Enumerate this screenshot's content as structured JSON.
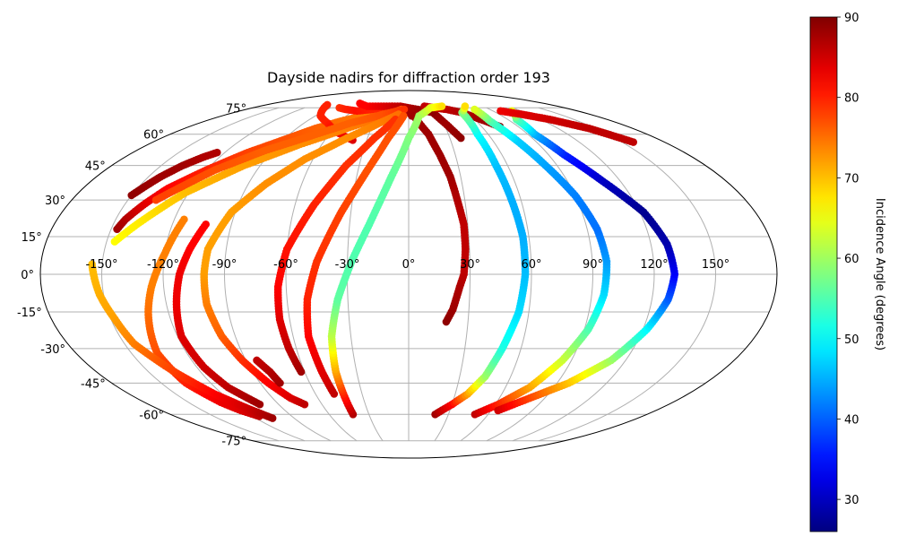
{
  "chart_data": {
    "type": "scatter",
    "title": "Dayside nadirs for diffraction order 193",
    "projection": "mollweide",
    "grid": true,
    "lon_ticks": [
      -150,
      -120,
      -90,
      -60,
      -30,
      0,
      30,
      60,
      90,
      120,
      150
    ],
    "lon_tick_labels": [
      "-150°",
      "-120°",
      "-90°",
      "-60°",
      "-30°",
      "0°",
      "30°",
      "60°",
      "90°",
      "120°",
      "150°"
    ],
    "lat_ticks": [
      75,
      60,
      45,
      30,
      15,
      0,
      -15,
      -30,
      -45,
      -60,
      -75
    ],
    "lat_tick_labels": [
      "75°",
      "60°",
      "45°",
      "30°",
      "15°",
      "0°",
      "-15°",
      "-30°",
      "-45°",
      "-60°",
      "-75°"
    ],
    "colorbar": {
      "label": "Incidence Angle (degrees)",
      "colormap": "jet",
      "vmin": 26,
      "vmax": 90,
      "ticks": [
        30,
        40,
        50,
        60,
        70,
        80,
        90
      ],
      "tick_labels": [
        "30",
        "40",
        "50",
        "60",
        "70",
        "80",
        "90"
      ]
    },
    "series": [
      {
        "points": [
          [
            -150,
            32,
            89
          ],
          [
            -143,
            40,
            88
          ],
          [
            -137,
            45,
            88
          ],
          [
            -130,
            49,
            87
          ],
          [
            -125,
            51,
            87
          ]
        ]
      },
      {
        "points": [
          [
            -147,
            18,
            88
          ],
          [
            -145,
            22,
            87
          ],
          [
            -140,
            28,
            84
          ],
          [
            -133,
            35,
            82
          ],
          [
            -120,
            43,
            80
          ],
          [
            -105,
            51,
            78
          ],
          [
            -90,
            57,
            77
          ],
          [
            -75,
            63,
            76
          ],
          [
            -60,
            67,
            75
          ],
          [
            -40,
            71,
            74
          ],
          [
            -20,
            73,
            75
          ],
          [
            -10,
            73,
            76
          ]
        ]
      },
      {
        "points": [
          [
            -103,
            77,
            80
          ],
          [
            -95,
            74,
            80
          ],
          [
            -85,
            70,
            80
          ],
          [
            -70,
            66,
            80
          ],
          [
            -55,
            61,
            82
          ],
          [
            -40,
            57,
            84
          ]
        ]
      },
      {
        "points": [
          [
            -80,
            75,
            79
          ],
          [
            -70,
            74,
            80
          ],
          [
            -55,
            73,
            81
          ],
          [
            -40,
            74,
            80
          ],
          [
            -20,
            76,
            79
          ],
          [
            -5,
            75,
            82
          ],
          [
            0,
            73,
            86
          ],
          [
            3,
            70,
            88
          ]
        ]
      },
      {
        "points": [
          [
            20,
            75,
            88
          ],
          [
            25,
            72,
            89
          ],
          [
            32,
            65,
            88
          ],
          [
            38,
            58,
            89
          ]
        ]
      },
      {
        "points": [
          [
            -65,
            78,
            82
          ],
          [
            -50,
            76,
            82
          ],
          [
            -30,
            76,
            84
          ],
          [
            -10,
            76,
            86
          ],
          [
            10,
            74,
            88
          ],
          [
            25,
            72,
            89
          ]
        ]
      },
      {
        "points": [
          [
            -7,
            75,
            87
          ],
          [
            5,
            70,
            88
          ],
          [
            15,
            60,
            88
          ],
          [
            20,
            50,
            88
          ],
          [
            24,
            40,
            88
          ],
          [
            26,
            30,
            87
          ],
          [
            28,
            20,
            86
          ],
          [
            28,
            10,
            86
          ],
          [
            27,
            0,
            86
          ],
          [
            25,
            -5,
            87
          ],
          [
            22,
            -14,
            88
          ],
          [
            19,
            -19,
            89
          ]
        ]
      },
      {
        "points": [
          [
            19,
            76,
            86
          ],
          [
            30,
            75,
            85
          ],
          [
            42,
            74,
            86
          ],
          [
            55,
            72,
            87
          ],
          [
            68,
            67,
            88
          ],
          [
            75,
            64,
            89
          ]
        ]
      },
      {
        "points": [
          [
            -115,
            22,
            74
          ],
          [
            -120,
            8,
            74
          ],
          [
            -126,
            -5,
            74
          ],
          [
            -130,
            -15,
            75
          ],
          [
            -136,
            -32,
            77
          ],
          [
            -135,
            -45,
            80
          ],
          [
            -128,
            -54,
            83
          ],
          [
            -122,
            -58,
            84
          ],
          [
            -115,
            -61,
            86
          ]
        ]
      },
      {
        "points": [
          [
            -155,
            4,
            70
          ],
          [
            -152,
            -8,
            71
          ],
          [
            -148,
            -18,
            72
          ],
          [
            -145,
            -28,
            74
          ],
          [
            -135,
            -40,
            78
          ],
          [
            -125,
            -50,
            82
          ],
          [
            -115,
            -57,
            85
          ],
          [
            -107,
            -62,
            88
          ]
        ]
      },
      {
        "points": [
          [
            -146,
            13,
            66
          ],
          [
            -138,
            20,
            67
          ],
          [
            -122,
            33,
            70
          ],
          [
            -100,
            45,
            72
          ],
          [
            -75,
            55,
            73
          ],
          [
            -50,
            63,
            74
          ],
          [
            -25,
            70,
            75
          ],
          [
            -8,
            74,
            76
          ]
        ]
      },
      {
        "points": [
          [
            -103,
            20,
            82
          ],
          [
            -108,
            10,
            82
          ],
          [
            -112,
            0,
            83
          ],
          [
            -115,
            -12,
            83
          ],
          [
            -118,
            -25,
            84
          ],
          [
            -116,
            -38,
            85
          ],
          [
            -112,
            -47,
            86
          ],
          [
            -103,
            -55,
            88
          ]
        ]
      },
      {
        "points": [
          [
            -135,
            30,
            78
          ],
          [
            -115,
            43,
            77
          ],
          [
            -95,
            52,
            76
          ],
          [
            -70,
            60,
            76
          ],
          [
            -50,
            66,
            76
          ],
          [
            -25,
            71,
            77
          ],
          [
            -5,
            74,
            79
          ]
        ]
      },
      {
        "points": [
          [
            -100,
            0,
            72
          ],
          [
            -99,
            10,
            72
          ],
          [
            -92,
            25,
            72
          ],
          [
            -80,
            37,
            73
          ],
          [
            -65,
            48,
            73
          ],
          [
            -45,
            58,
            73
          ],
          [
            -25,
            66,
            74
          ],
          [
            -10,
            71,
            75
          ]
        ]
      },
      {
        "points": [
          [
            -100,
            0,
            72
          ],
          [
            -100,
            -12,
            74
          ],
          [
            -97,
            -25,
            76
          ],
          [
            -92,
            -35,
            79
          ],
          [
            -85,
            -45,
            82
          ],
          [
            -78,
            -52,
            84
          ],
          [
            -72,
            -55,
            86
          ]
        ]
      },
      {
        "points": [
          [
            -78,
            -45,
            88
          ],
          [
            -80,
            -40,
            87
          ],
          [
            -84,
            -35,
            86
          ]
        ]
      },
      {
        "points": [
          [
            -62,
            -40,
            88
          ],
          [
            -64,
            -30,
            86
          ],
          [
            -65,
            -18,
            84
          ],
          [
            -64,
            -5,
            82
          ],
          [
            -60,
            10,
            81
          ],
          [
            -50,
            28,
            80
          ],
          [
            -38,
            45,
            79
          ],
          [
            -25,
            58,
            79
          ],
          [
            -12,
            68,
            79
          ]
        ]
      },
      {
        "points": [
          [
            -48,
            -50,
            86
          ],
          [
            -50,
            -40,
            84
          ],
          [
            -52,
            -25,
            82
          ],
          [
            -50,
            -10,
            80
          ],
          [
            -45,
            5,
            79
          ],
          [
            -35,
            25,
            78
          ],
          [
            -25,
            42,
            77
          ],
          [
            -15,
            58,
            77
          ],
          [
            -5,
            70,
            77
          ]
        ]
      },
      {
        "points": [
          [
            -42,
            -60,
            87
          ],
          [
            -42,
            -50,
            80
          ],
          [
            -42,
            -40,
            72
          ],
          [
            -40,
            -25,
            62
          ],
          [
            -35,
            -10,
            56
          ],
          [
            -28,
            5,
            55
          ],
          [
            -20,
            20,
            55
          ],
          [
            -10,
            40,
            56
          ],
          [
            0,
            58,
            58
          ],
          [
            10,
            70,
            60
          ],
          [
            25,
            75,
            64
          ],
          [
            40,
            76,
            68
          ]
        ]
      },
      {
        "points": [
          [
            20,
            -60,
            88
          ],
          [
            30,
            -55,
            82
          ],
          [
            38,
            -50,
            72
          ],
          [
            45,
            -42,
            60
          ],
          [
            50,
            -30,
            52
          ],
          [
            55,
            -15,
            48
          ],
          [
            57,
            0,
            46
          ],
          [
            57,
            15,
            45
          ],
          [
            55,
            30,
            45
          ],
          [
            53,
            45,
            46
          ],
          [
            52,
            60,
            50
          ],
          [
            55,
            72,
            58
          ],
          [
            68,
            76,
            68
          ]
        ]
      },
      {
        "points": [
          [
            50,
            -60,
            86
          ],
          [
            62,
            -55,
            80
          ],
          [
            75,
            -47,
            72
          ],
          [
            85,
            -35,
            63
          ],
          [
            92,
            -22,
            55
          ],
          [
            96,
            -8,
            48
          ],
          [
            97,
            5,
            44
          ],
          [
            95,
            18,
            41
          ],
          [
            90,
            32,
            42
          ],
          [
            83,
            45,
            44
          ],
          [
            77,
            57,
            47
          ],
          [
            72,
            67,
            55
          ],
          [
            73,
            74,
            64
          ]
        ]
      },
      {
        "points": [
          [
            65,
            -58,
            85
          ],
          [
            80,
            -52,
            78
          ],
          [
            97,
            -45,
            70
          ],
          [
            112,
            -35,
            60
          ],
          [
            122,
            -22,
            50
          ],
          [
            128,
            -10,
            40
          ],
          [
            130,
            0,
            34
          ],
          [
            128,
            12,
            29
          ],
          [
            122,
            25,
            27
          ],
          [
            110,
            38,
            30
          ],
          [
            100,
            50,
            36
          ],
          [
            95,
            60,
            45
          ],
          [
            98,
            68,
            55
          ],
          [
            110,
            73,
            65
          ]
        ]
      },
      {
        "points": [
          [
            98,
            73,
            83
          ],
          [
            112,
            71,
            84
          ],
          [
            128,
            68,
            85
          ],
          [
            145,
            63,
            86
          ],
          [
            158,
            56,
            86
          ]
        ]
      }
    ]
  }
}
